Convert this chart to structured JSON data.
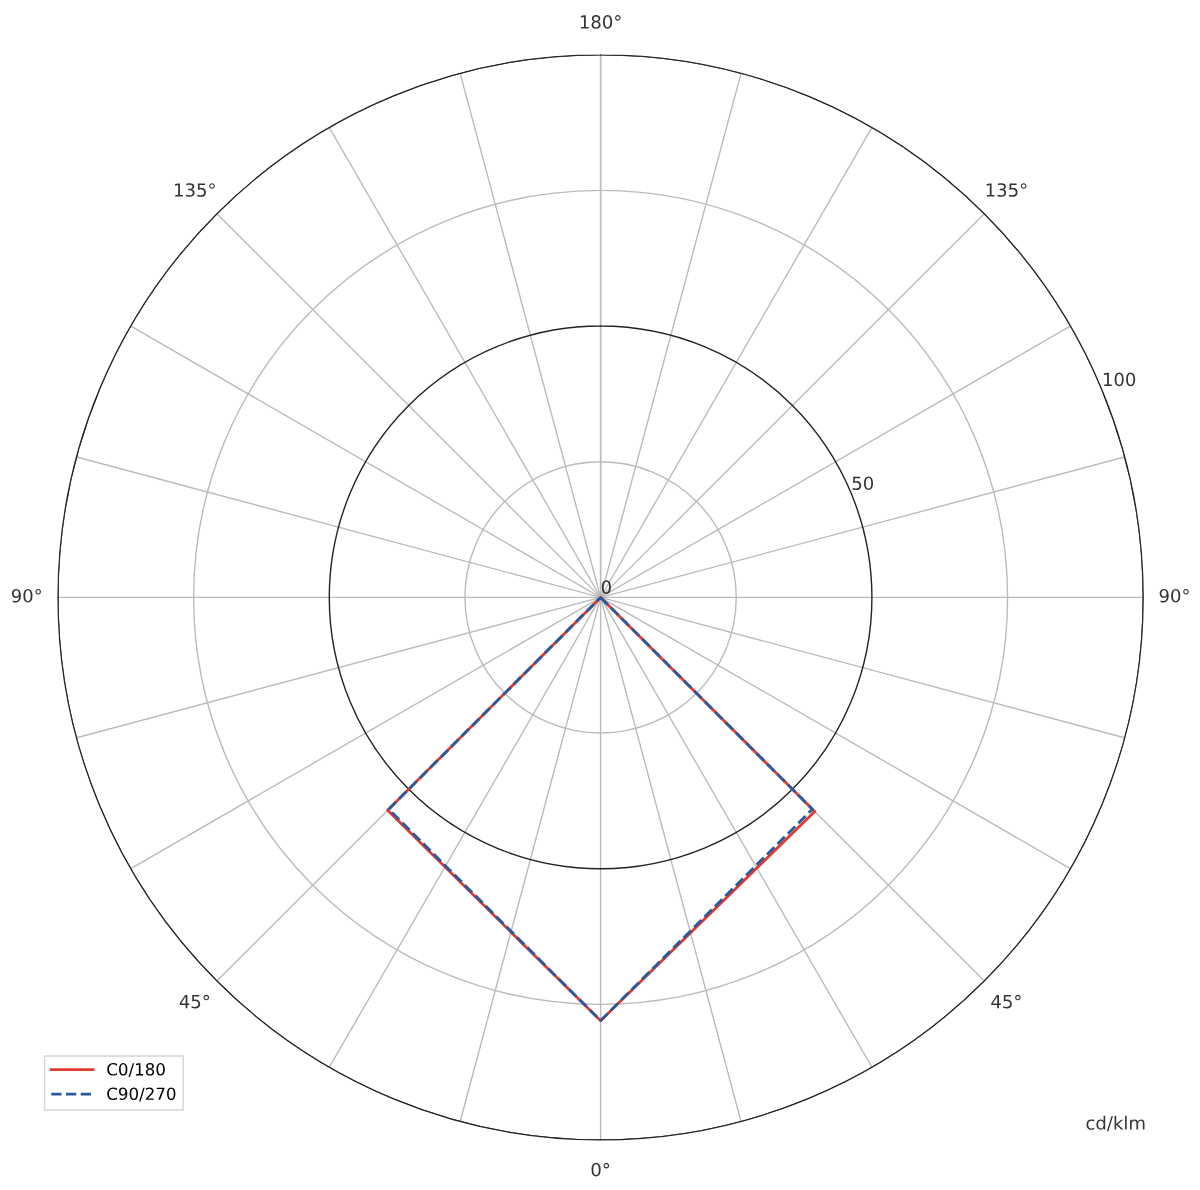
{
  "chart_data": {
    "type": "radar",
    "categories": [
      "180°",
      "135°",
      "90°",
      "45°",
      "0°",
      "45°",
      "90°",
      "135°"
    ],
    "series": [
      {
        "name": "C0/180",
        "color": "#e03a2f",
        "line_style": "solid",
        "values": [
          0,
          0,
          0,
          55.8,
          78,
          55.5,
          0,
          0
        ]
      },
      {
        "name": "C90/270",
        "color": "#2a5a9e",
        "line_style": "dashed",
        "values": [
          0,
          0,
          0,
          55.2,
          78,
          55.2,
          0,
          0
        ]
      }
    ],
    "ylim": [
      0,
      100
    ],
    "yticks": [
      0,
      50,
      100
    ],
    "grid": true,
    "legend": "bottom left",
    "marker": "none",
    "annotations": [
      "cd/klm"
    ]
  }
}
